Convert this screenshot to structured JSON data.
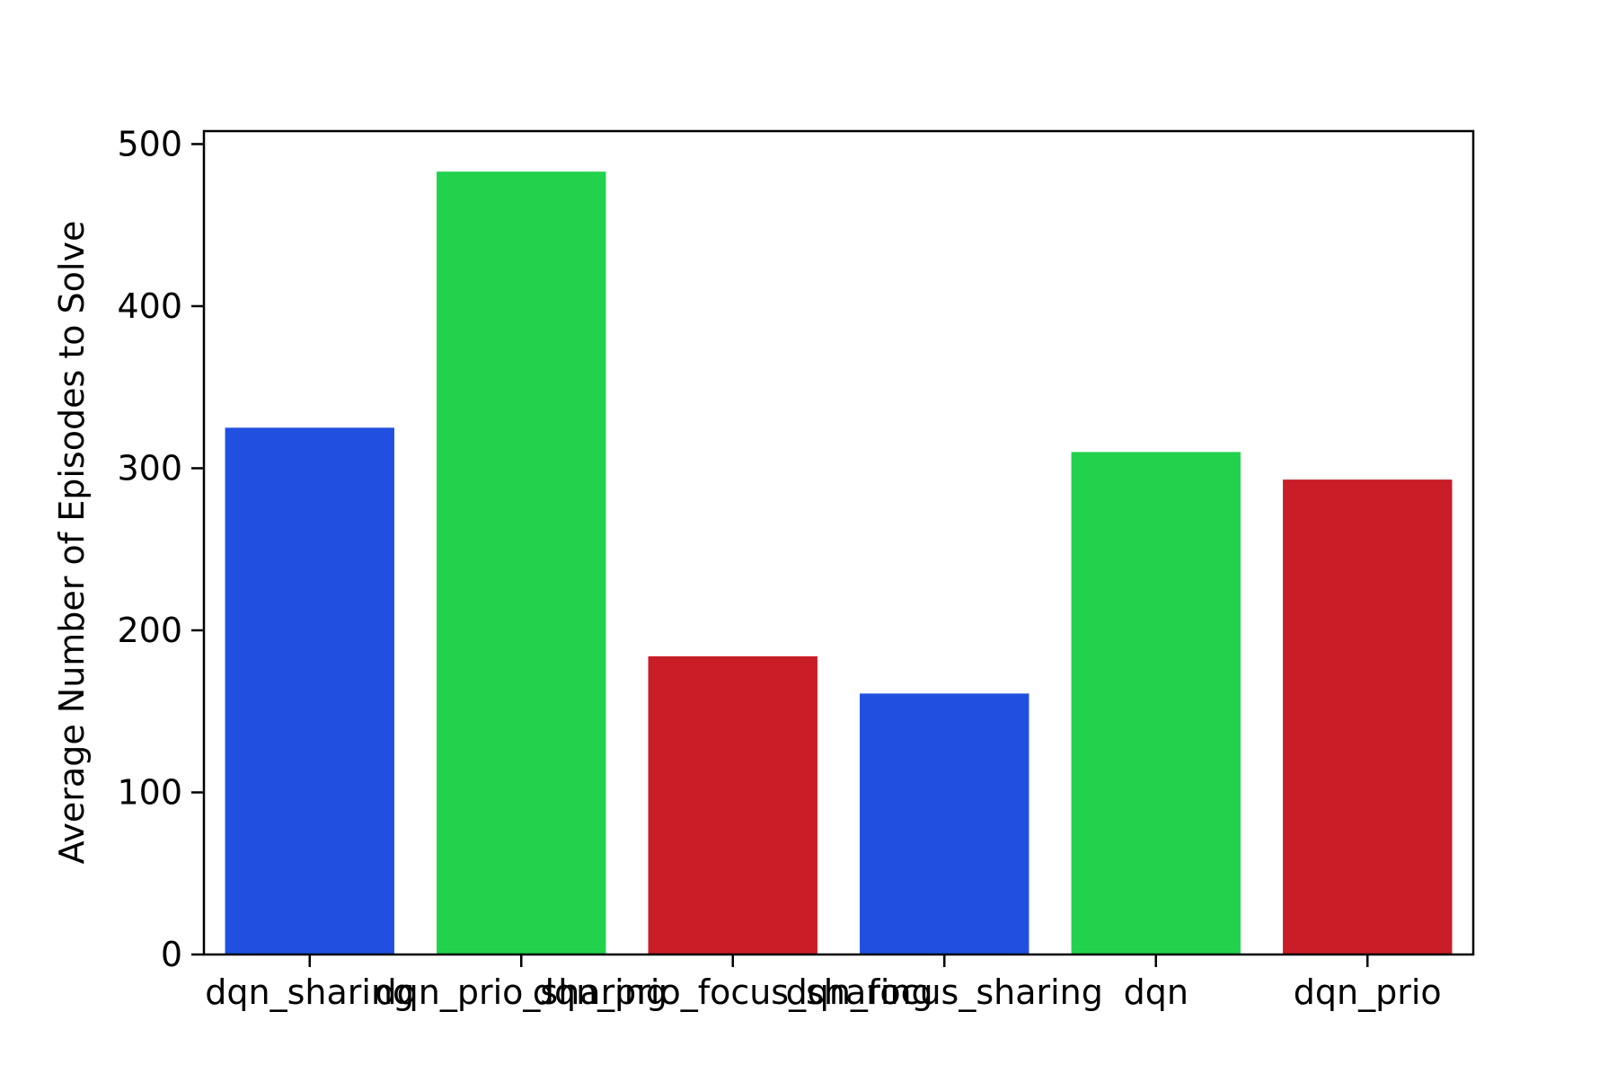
{
  "chart_data": {
    "type": "bar",
    "title": "",
    "xlabel": "",
    "ylabel": "Average Number of Episodes to Solve",
    "categories": [
      "dqn_sharing",
      "dqn_prio_sharing",
      "dqn_prio_focus_sharing",
      "dqn_focus_sharing",
      "dqn",
      "dqn_prio"
    ],
    "values": [
      325,
      483,
      184,
      161,
      310,
      293
    ],
    "colors": [
      "#2150e0",
      "#22d24d",
      "#c91d27",
      "#2150e0",
      "#22d24d",
      "#c91d27"
    ],
    "ylim": [
      0,
      508
    ],
    "yticks": [
      0,
      100,
      200,
      300,
      400,
      500
    ],
    "grid": false,
    "legend": "none"
  }
}
